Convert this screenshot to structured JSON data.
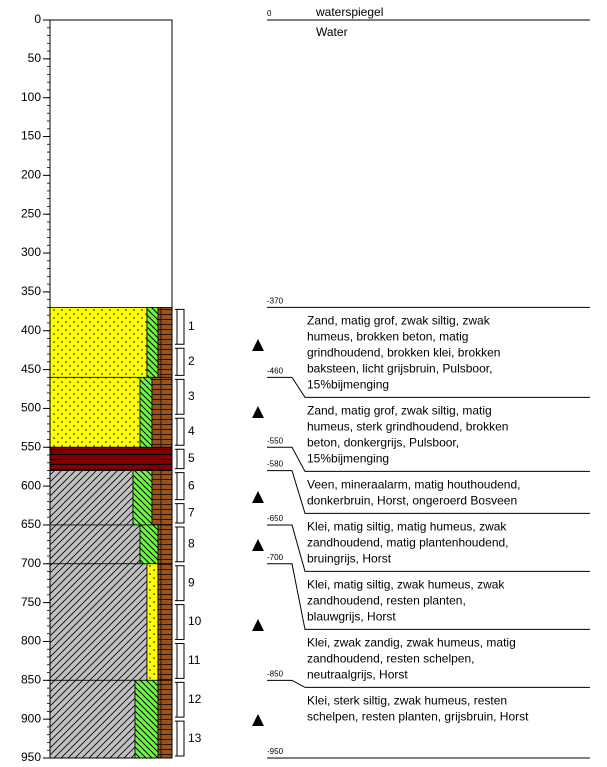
{
  "axis": {
    "ylim": [
      0,
      950
    ],
    "yticks": [
      0,
      50,
      100,
      150,
      200,
      250,
      300,
      350,
      400,
      450,
      500,
      550,
      600,
      650,
      700,
      750,
      800,
      850,
      900,
      950
    ]
  },
  "water": {
    "level": 0,
    "label": "waterspiegel",
    "description": "Water"
  },
  "levels": [
    -370,
    -460,
    -550,
    -580,
    -650,
    -700,
    -850,
    -950
  ],
  "layers": [
    {
      "colors": [
        "#ffff00",
        "#66ff33",
        "#8b4513"
      ],
      "description": [
        "Zand, matig grof, zwak siltig, zwak",
        "humeus, brokken beton, matig",
        "grindhoudend, brokken klei, brokken",
        "baksteen, licht grijsbruin, Pulsboor,",
        "15%bijmenging"
      ]
    },
    {
      "colors": [
        "#ffff00",
        "#66ff33",
        "#8b4513"
      ],
      "description": [
        "Zand, matig grof, zwak siltig, matig",
        "humeus, sterk grindhoudend, brokken",
        "beton, donkergrijs, Pulsboor,",
        "15%bijmenging"
      ]
    },
    {
      "colors": [
        "#800000"
      ],
      "description": [
        "Veen, mineraalarm, matig houthoudend,",
        "donkerbruin, Horst, ongeroerd Bosveen"
      ]
    },
    {
      "colors": [
        "#c0c0c0",
        "#66ff33",
        "#8b4513"
      ],
      "description": [
        "Klei, matig siltig, matig humeus, zwak",
        "zandhoudend, matig plantenhoudend,",
        "bruingrijs, Horst"
      ]
    },
    {
      "colors": [
        "#c0c0c0",
        "#66ff33",
        "#8b4513"
      ],
      "description": [
        "Klei, matig siltig, zwak humeus, zwak",
        "zandhoudend, resten planten,",
        "blauwgrijs, Horst"
      ]
    },
    {
      "colors": [
        "#c0c0c0",
        "#ffff00",
        "#8b4513"
      ],
      "description": [
        "Klei, zwak zandig, zwak humeus, matig",
        "zandhoudend, resten schelpen,",
        "neutraalgrijs, Horst"
      ]
    },
    {
      "colors": [
        "#c0c0c0",
        "#66ff33",
        "#8b4513"
      ],
      "description": [
        "Klei, sterk siltig, zwak humeus, resten",
        "schelpen, resten planten, grijsbruin, Horst"
      ]
    }
  ],
  "samples": [
    {
      "label": "1",
      "range": [
        370,
        420
      ]
    },
    {
      "label": "2",
      "range": [
        420,
        460
      ]
    },
    {
      "label": "3",
      "range": [
        460,
        510
      ]
    },
    {
      "label": "4",
      "range": [
        510,
        550
      ]
    },
    {
      "label": "5",
      "range": [
        550,
        580
      ]
    },
    {
      "label": "6",
      "range": [
        580,
        620
      ]
    },
    {
      "label": "7",
      "range": [
        620,
        650
      ]
    },
    {
      "label": "8",
      "range": [
        650,
        700
      ]
    },
    {
      "label": "9",
      "range": [
        700,
        750
      ]
    },
    {
      "label": "10",
      "range": [
        750,
        800
      ]
    },
    {
      "label": "11",
      "range": [
        800,
        850
      ]
    },
    {
      "label": "12",
      "range": [
        850,
        900
      ]
    },
    {
      "label": "13",
      "range": [
        900,
        950
      ]
    }
  ]
}
